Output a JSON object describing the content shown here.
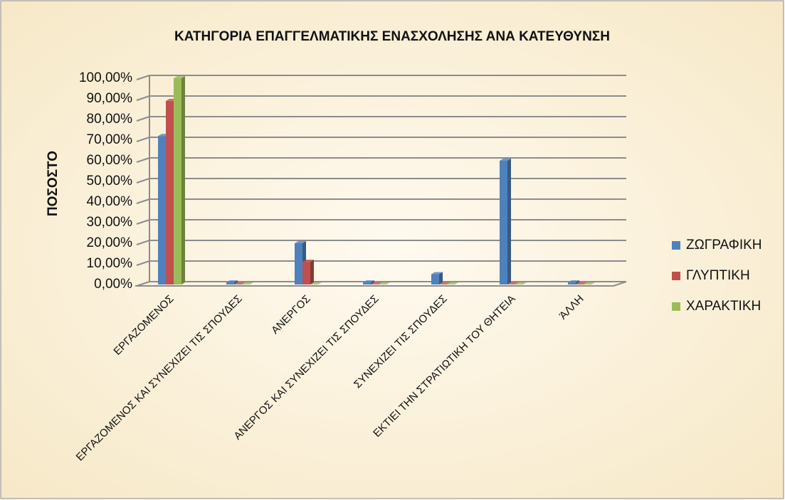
{
  "chart_data": {
    "type": "bar",
    "title": "ΚΑΤΗΓΟΡΙΑ ΕΠΑΓΓΕΛΜΑΤΙΚΗΣ ΕΝΑΣΧΟΛΗΣΗΣ ΑΝΑ ΚΑΤΕΥΘΥΝΣΗ",
    "y_label": "ΠΟΣΟΣΤΟ",
    "categories": [
      "ΕΡΓΑΖΟΜΕΝΟΣ",
      "ΕΡΓΑΖΟΜΕΝΟΣ ΚΑΙ ΣΥΝΕΧΙΖΕΙ ΤΙΣ ΣΠΟΥΔΕΣ",
      "ΑΝΕΡΓΟΣ",
      "ΑΝΕΡΓΟΣ ΚΑΙ ΣΥΝΕΧΙΖΕΙ ΤΙΣ ΣΠΟΥΔΕΣ",
      "ΣΥΝΕΧΙΖΕΙ ΤΙΣ ΣΠΟΥΔΕΣ",
      "ΕΚΤΙΕΙ ΤΗΝ ΣΤΡΑΤΙΩΤΙΚΗ ΤΟΥ ΘΗΤΕΙΑ",
      "ΆΛΛΗ"
    ],
    "series": [
      {
        "name": "ΖΩΓΡΑΦΙΚΗ",
        "color": "#4f81bd",
        "values": [
          72,
          1,
          20,
          1,
          5,
          60,
          1
        ]
      },
      {
        "name": "ΓΛΥΠΤΙΚΗ",
        "color": "#c0504d",
        "values": [
          89,
          0,
          11,
          0,
          0,
          0,
          0
        ]
      },
      {
        "name": "ΧΑΡΑΚΤΙΚΗ",
        "color": "#9bbb59",
        "values": [
          100,
          0,
          0,
          0,
          0,
          0,
          0
        ]
      }
    ],
    "ylim": [
      0,
      100
    ],
    "yticks": [
      {
        "value": 0,
        "label": "0,00%"
      },
      {
        "value": 10,
        "label": "10,00%"
      },
      {
        "value": 20,
        "label": "20,00%"
      },
      {
        "value": 30,
        "label": "30,00%"
      },
      {
        "value": 40,
        "label": "40,00%"
      },
      {
        "value": 50,
        "label": "50,00%"
      },
      {
        "value": 60,
        "label": "60,00%"
      },
      {
        "value": 70,
        "label": "70,00%"
      },
      {
        "value": 80,
        "label": "80,00%"
      },
      {
        "value": 90,
        "label": "90,00%"
      },
      {
        "value": 100,
        "label": "100,00%"
      }
    ],
    "grid": true,
    "legend": "right"
  }
}
